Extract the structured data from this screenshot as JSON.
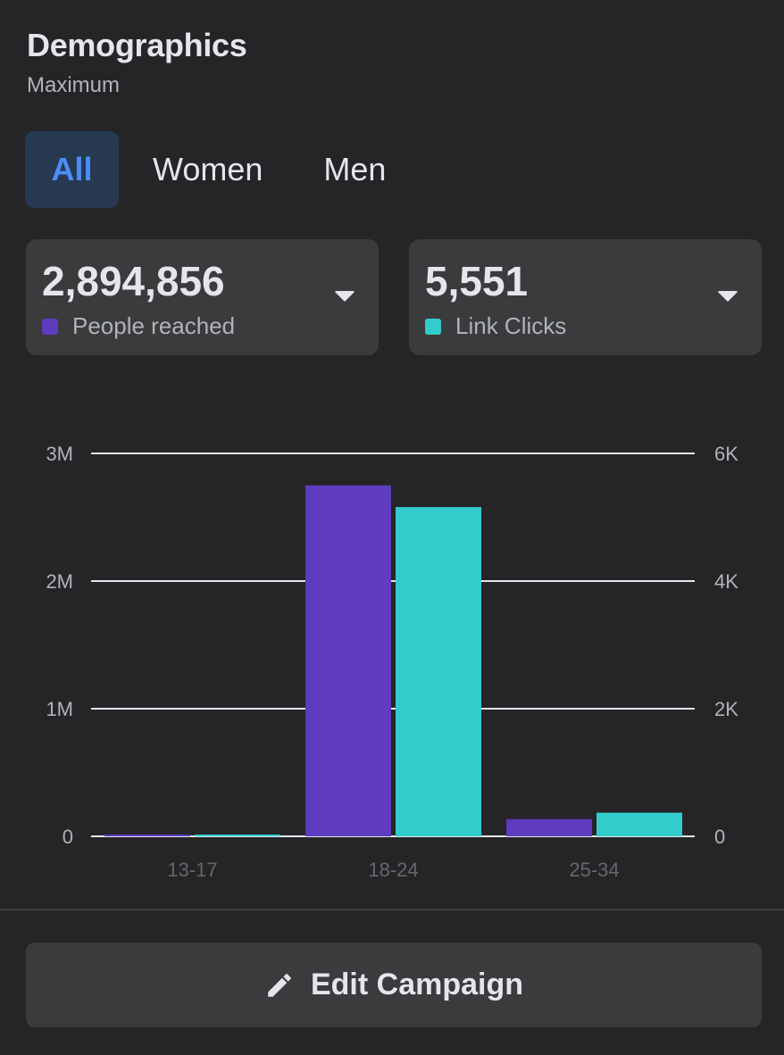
{
  "header": {
    "title": "Demographics",
    "subtitle": "Maximum"
  },
  "tabs": [
    {
      "label": "All",
      "active": true
    },
    {
      "label": "Women",
      "active": false
    },
    {
      "label": "Men",
      "active": false
    }
  ],
  "metrics": [
    {
      "value": "2,894,856",
      "label": "People reached",
      "color": "#5e3bbf",
      "icon": "chevron-down-icon"
    },
    {
      "value": "5,551",
      "label": "Link Clicks",
      "color": "#33cccc",
      "icon": "chevron-down-icon"
    }
  ],
  "chart_data": {
    "type": "bar",
    "categories": [
      "13-17",
      "18-24",
      "25-34"
    ],
    "series": [
      {
        "name": "People reached",
        "axis": "left",
        "color": "#5e3bbf",
        "values": [
          8000,
          2750000,
          135000
        ]
      },
      {
        "name": "Link Clicks",
        "axis": "right",
        "color": "#33cccc",
        "values": [
          10,
          5160,
          370
        ]
      }
    ],
    "left_axis": {
      "ticks": [
        "0",
        "1M",
        "2M",
        "3M"
      ],
      "range": [
        0,
        3000000
      ]
    },
    "right_axis": {
      "ticks": [
        "0",
        "2K",
        "4K",
        "6K"
      ],
      "range": [
        0,
        6000
      ]
    },
    "grid": true
  },
  "actions": {
    "edit_label": "Edit Campaign",
    "edit_icon": "pencil-icon"
  }
}
